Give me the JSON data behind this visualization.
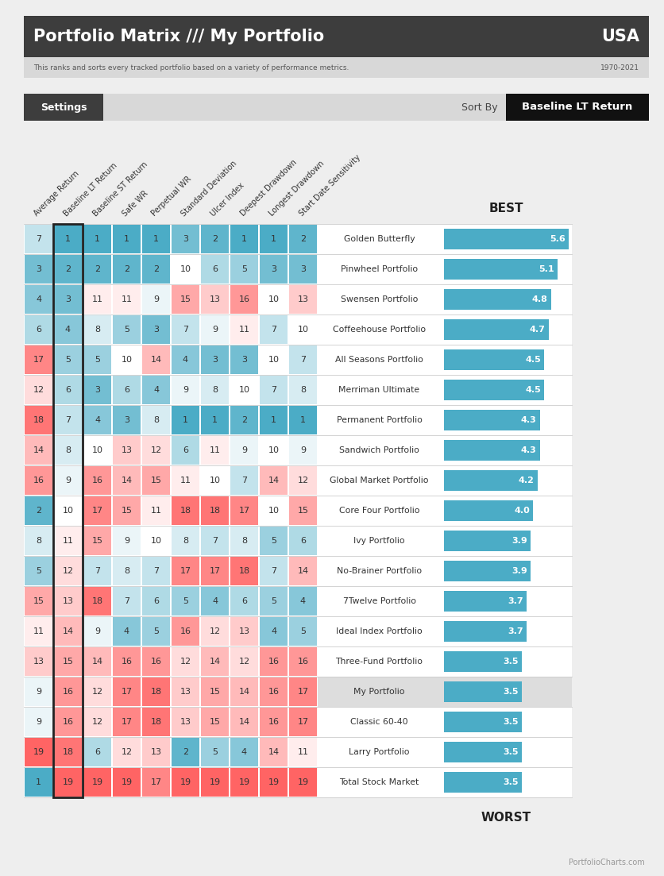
{
  "title": "Portfolio Matrix /// My Portfolio",
  "country": "USA",
  "subtitle": "This ranks and sorts every tracked portfolio based on a variety of performance metrics.",
  "date_range": "1970-2021",
  "sort_by_label": "Sort By",
  "sort_by_value": "Baseline LT Return",
  "best_label": "BEST",
  "worst_label": "WORST",
  "footer": "PortfolioCharts.com",
  "col_headers": [
    "Average Return",
    "Baseline LT Return",
    "Baseline ST Return",
    "Safe WR",
    "Perpetual WR",
    "Standard Deviation",
    "Ulcer Index",
    "Deepest Drawdown",
    "Longest Drawdown",
    "Start Date Sensitivity"
  ],
  "portfolios": [
    {
      "name": "Golden Butterfly",
      "values": [
        7,
        1,
        1,
        1,
        1,
        3,
        2,
        1,
        1,
        2
      ],
      "bar": 5.6,
      "highlighted": false
    },
    {
      "name": "Pinwheel Portfolio",
      "values": [
        3,
        2,
        2,
        2,
        2,
        10,
        6,
        5,
        3,
        3
      ],
      "bar": 5.1,
      "highlighted": false
    },
    {
      "name": "Swensen Portfolio",
      "values": [
        4,
        3,
        11,
        11,
        9,
        15,
        13,
        16,
        10,
        13
      ],
      "bar": 4.8,
      "highlighted": false
    },
    {
      "name": "Coffeehouse Portfolio",
      "values": [
        6,
        4,
        8,
        5,
        3,
        7,
        9,
        11,
        7,
        10
      ],
      "bar": 4.7,
      "highlighted": false
    },
    {
      "name": "All Seasons Portfolio",
      "values": [
        17,
        5,
        5,
        10,
        14,
        4,
        3,
        3,
        10,
        7
      ],
      "bar": 4.5,
      "highlighted": false
    },
    {
      "name": "Merriman Ultimate",
      "values": [
        12,
        6,
        3,
        6,
        4,
        9,
        8,
        10,
        7,
        8
      ],
      "bar": 4.5,
      "highlighted": false
    },
    {
      "name": "Permanent Portfolio",
      "values": [
        18,
        7,
        4,
        3,
        8,
        1,
        1,
        2,
        1,
        1
      ],
      "bar": 4.3,
      "highlighted": false
    },
    {
      "name": "Sandwich Portfolio",
      "values": [
        14,
        8,
        10,
        13,
        12,
        6,
        11,
        9,
        10,
        9
      ],
      "bar": 4.3,
      "highlighted": false
    },
    {
      "name": "Global Market Portfolio",
      "values": [
        16,
        9,
        16,
        14,
        15,
        11,
        10,
        7,
        14,
        12
      ],
      "bar": 4.2,
      "highlighted": false
    },
    {
      "name": "Core Four Portfolio",
      "values": [
        2,
        10,
        17,
        15,
        11,
        18,
        18,
        17,
        10,
        15
      ],
      "bar": 4.0,
      "highlighted": false
    },
    {
      "name": "Ivy Portfolio",
      "values": [
        8,
        11,
        15,
        9,
        10,
        8,
        7,
        8,
        5,
        6
      ],
      "bar": 3.9,
      "highlighted": false
    },
    {
      "name": "No-Brainer Portfolio",
      "values": [
        5,
        12,
        7,
        8,
        7,
        17,
        17,
        18,
        7,
        14
      ],
      "bar": 3.9,
      "highlighted": false
    },
    {
      "name": "7Twelve Portfolio",
      "values": [
        15,
        13,
        18,
        7,
        6,
        5,
        4,
        6,
        5,
        4
      ],
      "bar": 3.7,
      "highlighted": false
    },
    {
      "name": "Ideal Index Portfolio",
      "values": [
        11,
        14,
        9,
        4,
        5,
        16,
        12,
        13,
        4,
        5
      ],
      "bar": 3.7,
      "highlighted": false
    },
    {
      "name": "Three-Fund Portfolio",
      "values": [
        13,
        15,
        14,
        16,
        16,
        12,
        14,
        12,
        16,
        16
      ],
      "bar": 3.5,
      "highlighted": false
    },
    {
      "name": "My Portfolio",
      "values": [
        9,
        16,
        12,
        17,
        18,
        13,
        15,
        14,
        16,
        17
      ],
      "bar": 3.5,
      "highlighted": true
    },
    {
      "name": "Classic 60-40",
      "values": [
        9,
        16,
        12,
        17,
        18,
        13,
        15,
        14,
        16,
        17
      ],
      "bar": 3.5,
      "highlighted": false
    },
    {
      "name": "Larry Portfolio",
      "values": [
        19,
        18,
        6,
        12,
        13,
        2,
        5,
        4,
        14,
        11
      ],
      "bar": 3.5,
      "highlighted": false
    },
    {
      "name": "Total Stock Market",
      "values": [
        1,
        19,
        19,
        19,
        17,
        19,
        19,
        19,
        19,
        19
      ],
      "bar": 3.5,
      "highlighted": false
    }
  ],
  "n_portfolios": 19,
  "n_cols": 10,
  "sorted_col_idx": 1,
  "header_bg": "#3d3d3d",
  "header_text": "#ffffff",
  "subheader_bg": "#d8d8d8",
  "subheader_text": "#555555",
  "settings_bg": "#3d3d3d",
  "settings_text": "#ffffff",
  "sortby_bg": "#111111",
  "sortby_text": "#ffffff",
  "bar_color": "#4bacc6",
  "highlighted_row_bg": "#dddddd",
  "row_bg_white": "#ffffff",
  "row_border_color": "#cccccc",
  "sorted_col_border": "#222222",
  "max_bar_value": 5.6
}
